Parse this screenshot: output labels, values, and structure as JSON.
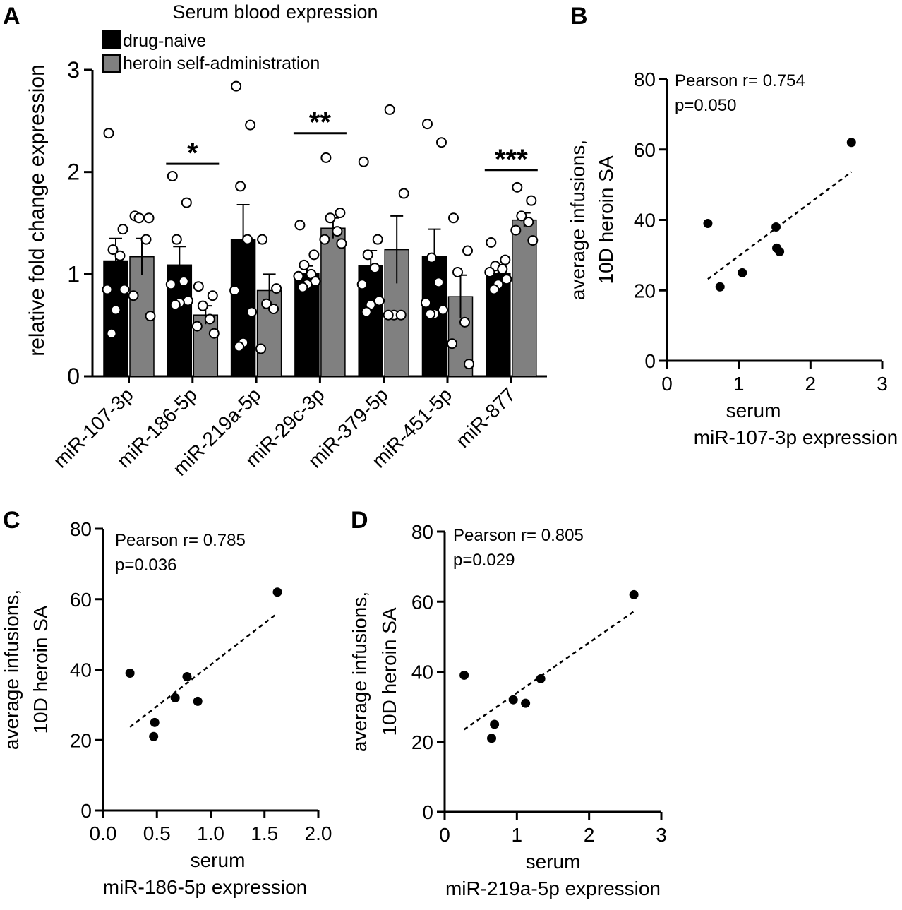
{
  "figure": {
    "background": "#ffffff"
  },
  "panels": {
    "A": {
      "letter": "A"
    },
    "B": {
      "letter": "B"
    },
    "C": {
      "letter": "C"
    },
    "D": {
      "letter": "D"
    }
  },
  "chart_data": [
    {
      "panel": "A",
      "type": "bar",
      "title": "Serum blood expression",
      "ylabel": "relative fold change expression",
      "xlabel": "",
      "ylim": [
        0,
        3
      ],
      "yticks": [
        0,
        1,
        2,
        3
      ],
      "categories": [
        "miR-107-3p",
        "miR-186-5p",
        "miR-219a-5p",
        "miR-29c-3p",
        "miR-379-5p",
        "miR-451-5p",
        "miR-877"
      ],
      "legend": {
        "placement": "top-left"
      },
      "series": [
        {
          "name": "drug-naive",
          "color": "#000000",
          "values": [
            1.13,
            1.09,
            1.34,
            1.01,
            1.08,
            1.17,
            1.01
          ],
          "sem": [
            0.22,
            0.18,
            0.34,
            0.07,
            0.15,
            0.27,
            0.06
          ],
          "points": [
            [
              2.38,
              1.44,
              1.24,
              1.18,
              0.85,
              0.85,
              0.65,
              0.42
            ],
            [
              1.96,
              1.7,
              1.34,
              0.93,
              0.9,
              0.74,
              0.72,
              0.7
            ],
            [
              2.84,
              2.46,
              1.86,
              1.34,
              0.84,
              0.63,
              0.33,
              0.29
            ],
            [
              1.48,
              1.19,
              1.09,
              1.0,
              0.98,
              0.93,
              0.9,
              0.87
            ],
            [
              2.1,
              1.34,
              1.19,
              1.06,
              0.9,
              0.74,
              0.7,
              0.63
            ],
            [
              2.47,
              2.29,
              1.16,
              0.92,
              0.72,
              0.65,
              0.61,
              0.61
            ],
            [
              1.31,
              1.14,
              1.08,
              1.05,
              1.02,
              0.95,
              0.9,
              0.85
            ]
          ]
        },
        {
          "name": "heroin self-administration",
          "color": "#808080",
          "values": [
            1.17,
            0.6,
            0.84,
            1.45,
            1.24,
            0.78,
            1.53
          ],
          "sem": [
            0.18,
            0.09,
            0.16,
            0.1,
            0.33,
            0.21,
            0.07
          ],
          "points": [
            [
              1.57,
              1.55,
              1.55,
              1.34,
              0.79,
              0.59
            ],
            [
              0.88,
              0.79,
              0.69,
              0.56,
              0.49,
              0.42
            ],
            [
              1.34,
              0.86,
              0.71,
              0.66,
              0.27
            ],
            [
              2.14,
              1.6,
              1.55,
              1.42,
              1.34,
              1.3
            ],
            [
              2.61,
              1.79,
              0.6,
              0.6,
              0.6
            ],
            [
              1.55,
              1.23,
              1.02,
              0.53,
              0.32,
              0.12
            ],
            [
              1.85,
              1.72,
              1.57,
              1.51,
              1.43,
              1.33
            ]
          ]
        }
      ],
      "significance": [
        {
          "category": "miR-186-5p",
          "label": "*"
        },
        {
          "category": "miR-29c-3p",
          "label": "**"
        },
        {
          "category": "miR-877",
          "label": "***"
        }
      ]
    },
    {
      "panel": "B",
      "type": "scatter",
      "title": "",
      "xlabel": [
        "serum",
        "miR-107-3p expression"
      ],
      "ylabel": [
        "average infusions,",
        "10D heroin SA"
      ],
      "xlim": [
        0,
        3
      ],
      "ylim": [
        0,
        80
      ],
      "xticks": [
        "0",
        "1",
        "2",
        "3"
      ],
      "yticks": [
        "0",
        "20",
        "40",
        "60",
        "80"
      ],
      "annotation": [
        "Pearson r= 0.754",
        "p=0.050"
      ],
      "points": [
        [
          0.57,
          39
        ],
        [
          0.74,
          21
        ],
        [
          1.05,
          25
        ],
        [
          1.52,
          38
        ],
        [
          1.53,
          32
        ],
        [
          1.57,
          31
        ],
        [
          2.57,
          62
        ]
      ],
      "fit": [
        [
          0.57,
          23.2
        ],
        [
          2.57,
          53.6
        ]
      ],
      "color": "#000000"
    },
    {
      "panel": "C",
      "type": "scatter",
      "title": "",
      "xlabel": [
        "serum",
        "miR-186-5p expression"
      ],
      "ylabel": [
        "average infusions,",
        "10D heroin SA"
      ],
      "xlim": [
        0,
        2
      ],
      "ylim": [
        0,
        80
      ],
      "xticks": [
        "0.0",
        "0.5",
        "1.0",
        "1.5",
        "2.0"
      ],
      "yticks": [
        "0",
        "20",
        "40",
        "60",
        "80"
      ],
      "annotation": [
        "Pearson r= 0.785",
        "p=0.036"
      ],
      "points": [
        [
          0.25,
          39
        ],
        [
          0.47,
          21
        ],
        [
          0.48,
          25
        ],
        [
          0.67,
          32
        ],
        [
          0.78,
          38
        ],
        [
          0.88,
          31
        ],
        [
          1.62,
          62
        ]
      ],
      "fit": [
        [
          0.25,
          23.7
        ],
        [
          1.62,
          56.0
        ]
      ],
      "color": "#000000"
    },
    {
      "panel": "D",
      "type": "scatter",
      "title": "",
      "xlabel": [
        "serum",
        "miR-219a-5p expression"
      ],
      "ylabel": [
        "average infusions,",
        "10D heroin SA"
      ],
      "xlim": [
        0,
        3
      ],
      "ylim": [
        0,
        80
      ],
      "xticks": [
        "0",
        "1",
        "2",
        "3"
      ],
      "yticks": [
        "0",
        "20",
        "40",
        "60",
        "80"
      ],
      "annotation": [
        "Pearson r= 0.805",
        "p=0.029"
      ],
      "points": [
        [
          0.27,
          39
        ],
        [
          0.65,
          21
        ],
        [
          0.69,
          25
        ],
        [
          0.95,
          32
        ],
        [
          1.12,
          31
        ],
        [
          1.33,
          38
        ],
        [
          2.62,
          62
        ]
      ],
      "fit": [
        [
          0.27,
          23.5
        ],
        [
          2.62,
          57.2
        ]
      ],
      "color": "#000000"
    }
  ]
}
